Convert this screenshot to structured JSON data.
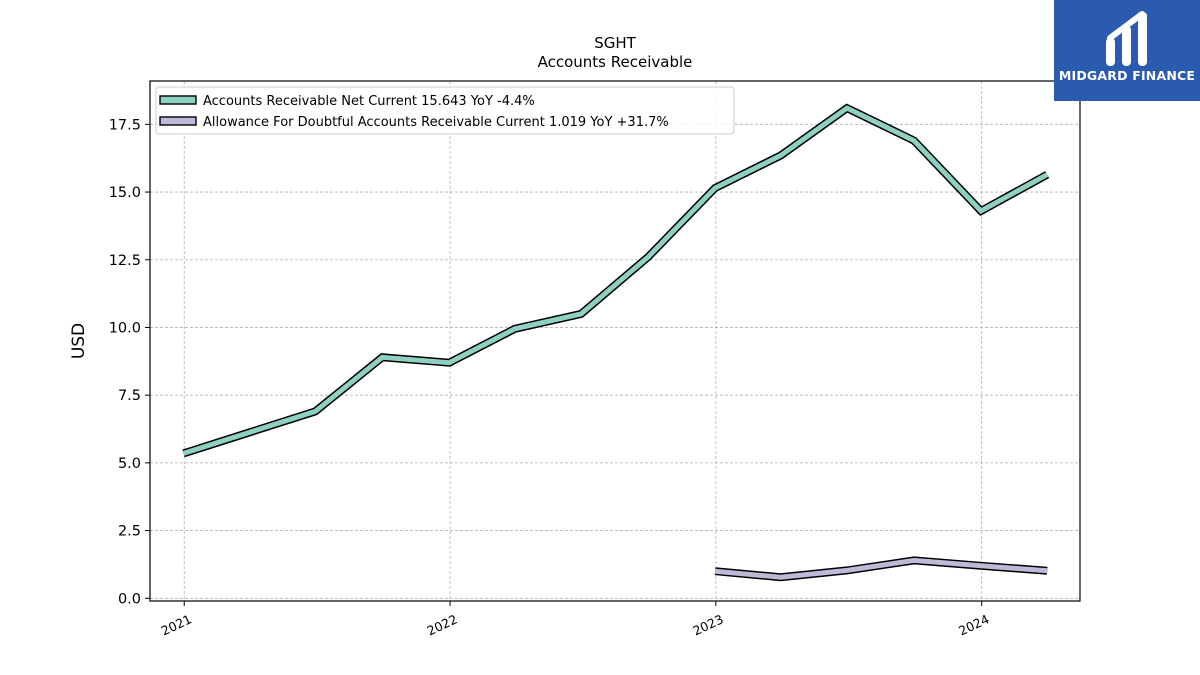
{
  "chart_data": {
    "type": "line",
    "title": "SGHT",
    "subtitle": "Accounts Receivable",
    "xlabel": "",
    "ylabel": "USD",
    "xlim": [
      "2020-11-15",
      "2024-05-15"
    ],
    "ylim": [
      -0.1,
      19.1
    ],
    "yticks": [
      0.0,
      2.5,
      5.0,
      7.5,
      10.0,
      12.5,
      15.0,
      17.5
    ],
    "ytick_labels": [
      "0.0",
      "2.5",
      "5.0",
      "7.5",
      "10.0",
      "12.5",
      "15.0",
      "17.5"
    ],
    "xticks": [
      "2021-01-01",
      "2022-01-01",
      "2023-01-01",
      "2024-01-01"
    ],
    "xtick_labels": [
      "2021",
      "2022",
      "2023",
      "2024"
    ],
    "grid": true,
    "legend_position": "top-left",
    "series": [
      {
        "name": "Accounts Receivable Net Current",
        "legend_label": "Accounts Receivable Net Current  15.643 YoY -4.4%",
        "color": "#8ed0c2",
        "points": [
          {
            "x": "2020-12-31",
            "y": 5.35
          },
          {
            "x": "2021-06-30",
            "y": 6.9
          },
          {
            "x": "2021-09-30",
            "y": 8.9
          },
          {
            "x": "2021-12-31",
            "y": 8.7
          },
          {
            "x": "2022-03-31",
            "y": 9.95
          },
          {
            "x": "2022-06-30",
            "y": 10.5
          },
          {
            "x": "2022-09-30",
            "y": 12.6
          },
          {
            "x": "2022-12-31",
            "y": 15.15
          },
          {
            "x": "2023-03-31",
            "y": 16.35
          },
          {
            "x": "2023-06-30",
            "y": 18.1
          },
          {
            "x": "2023-09-30",
            "y": 16.9
          },
          {
            "x": "2023-12-31",
            "y": 14.3
          },
          {
            "x": "2024-03-31",
            "y": 15.643
          }
        ]
      },
      {
        "name": "Allowance For Doubtful Accounts Receivable Current",
        "legend_label": "Allowance For Doubtful Accounts Receivable Current  1.019 YoY +31.7%",
        "color": "#bcbad8",
        "points": [
          {
            "x": "2022-12-31",
            "y": 1.0
          },
          {
            "x": "2023-03-31",
            "y": 0.78
          },
          {
            "x": "2023-06-30",
            "y": 1.03
          },
          {
            "x": "2023-09-30",
            "y": 1.4
          },
          {
            "x": "2023-12-31",
            "y": 1.2
          },
          {
            "x": "2024-03-31",
            "y": 1.019
          }
        ]
      }
    ]
  },
  "logo": {
    "text": "MIDGARD FINANCE",
    "background": "#2b5bb0"
  }
}
